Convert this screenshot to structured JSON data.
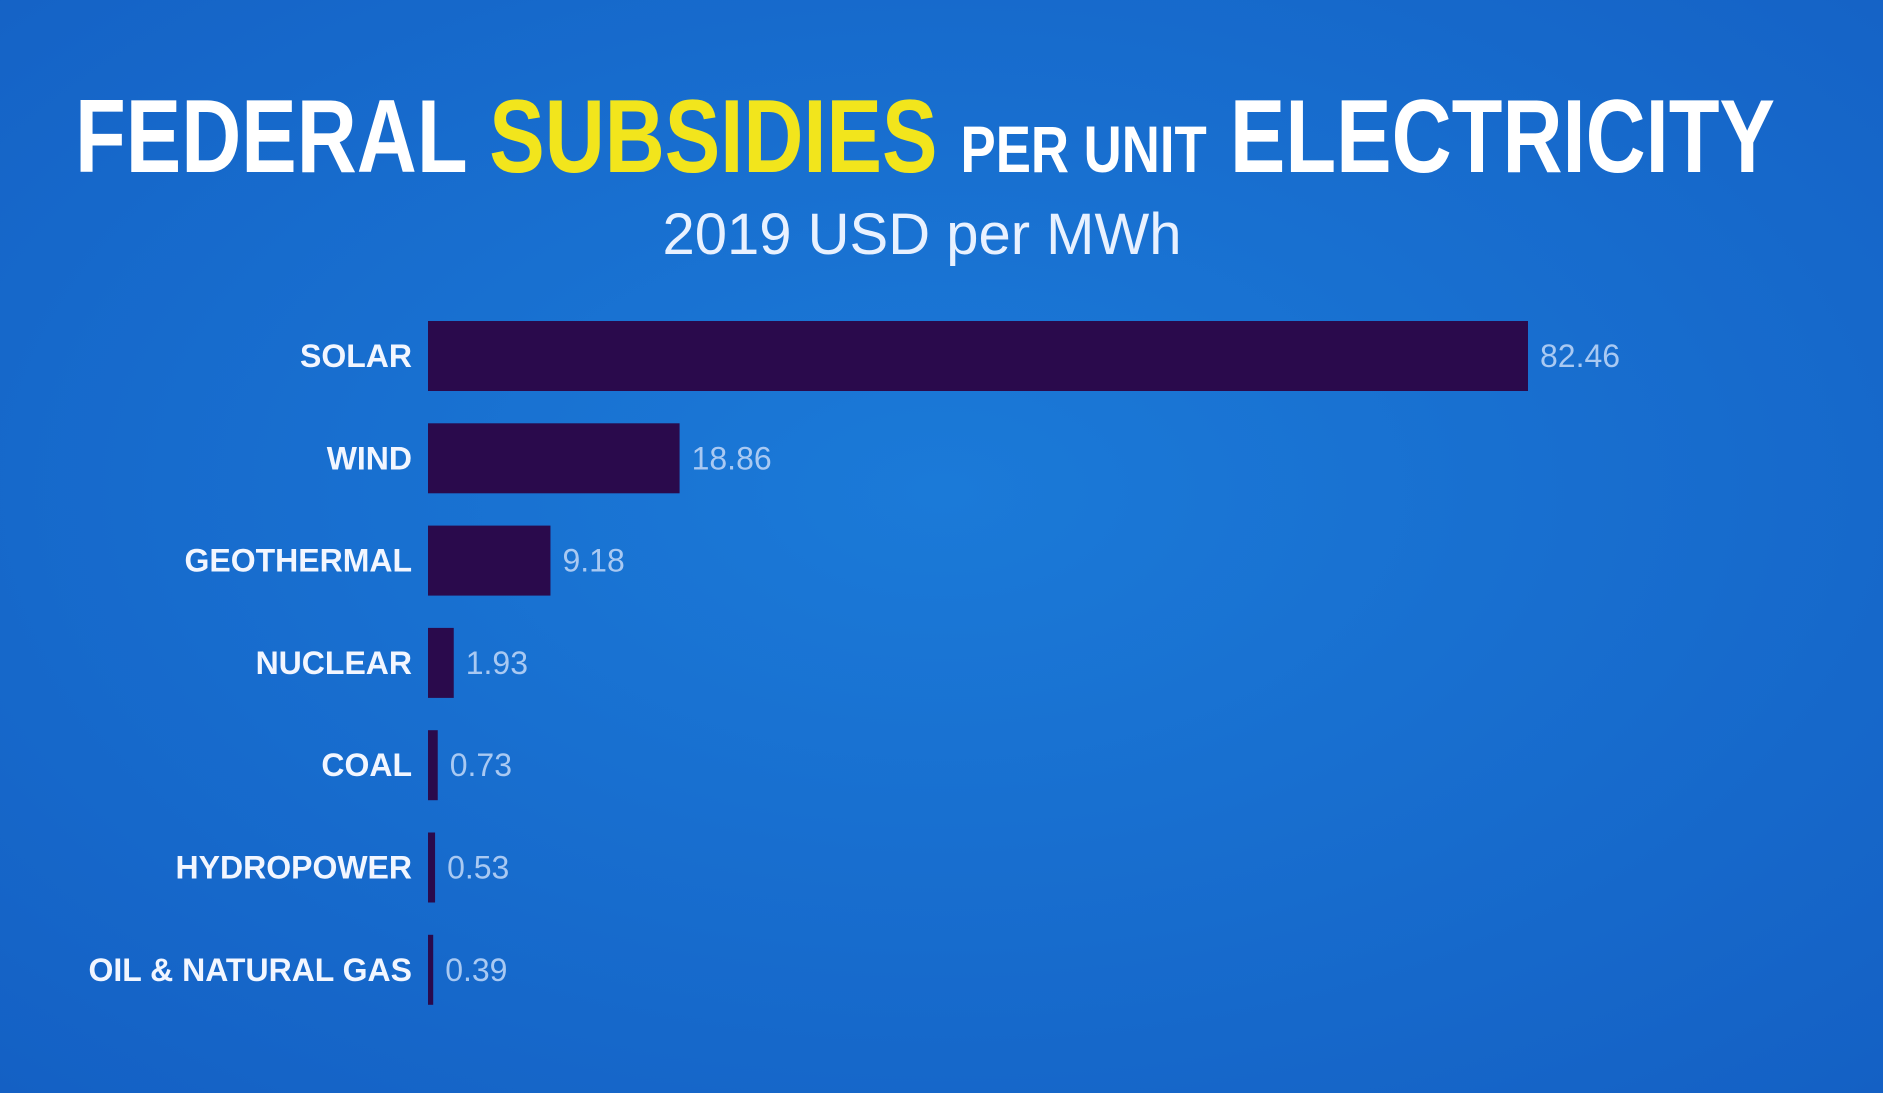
{
  "chart_data": {
    "type": "hbar",
    "title": [
      "FEDERAL",
      "SUBSIDIES",
      "PER UNIT",
      "ELECTRICITY"
    ],
    "subtitle": "2019 USD per MWh",
    "categories": [
      "SOLAR",
      "WIND",
      "GEOTHERMAL",
      "NUCLEAR",
      "COAL",
      "HYDROPOWER",
      "OIL & NATURAL GAS"
    ],
    "values": [
      82.46,
      18.86,
      9.18,
      1.93,
      0.73,
      0.53,
      0.39
    ],
    "color": "#2a0a4c"
  }
}
